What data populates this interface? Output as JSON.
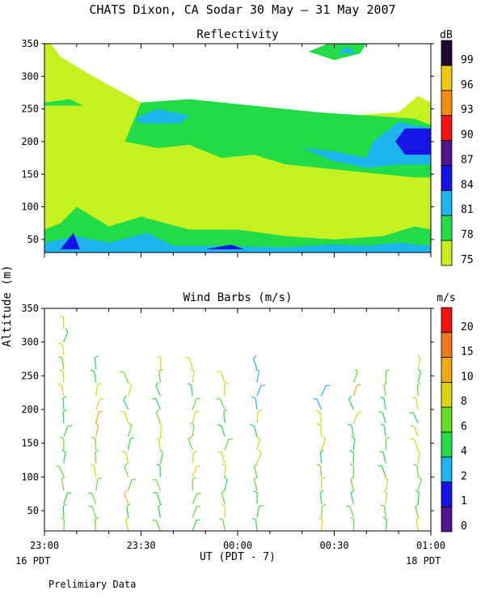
{
  "title": "CHATS Dixon, CA  Sodar  30 May – 31 May 2007",
  "ylabel": "Altitude (m)",
  "xlabel": "UT  (PDT - 7)",
  "x_ticks": [
    "23:00",
    "23:30",
    "00:00",
    "00:30",
    "01:00"
  ],
  "x_sublabels": {
    "left": "16 PDT",
    "right": "18 PDT"
  },
  "footer": "Prelimiary Data",
  "colors": {
    "r75": "#c6f020",
    "r78": "#22dc48",
    "r81": "#1eb4f0",
    "r84": "#1414e6",
    "r87": "#50148c",
    "r90": "#f01414",
    "r93": "#f08c14",
    "r96": "#f0c814",
    "r99": "#1e0a32",
    "w0": "#50148c",
    "w1": "#1414e6",
    "w2": "#1eb4f0",
    "w4": "#22dc48",
    "w6": "#64dc28",
    "w8": "#dcd214",
    "w10": "#f0aa14",
    "w15": "#f0781e",
    "w20": "#f01414"
  },
  "chart_data": [
    {
      "type": "heatmap",
      "title": "Reflectivity",
      "unit_label": "dB",
      "x_range": [
        "23:00",
        "01:00"
      ],
      "ylim": [
        30,
        350
      ],
      "yticks": [
        50,
        100,
        150,
        200,
        250,
        300,
        350
      ],
      "color_levels": [
        75,
        78,
        81,
        84,
        87,
        90,
        93,
        96,
        99
      ],
      "color_keys": [
        "r75",
        "r78",
        "r81",
        "r84",
        "r87",
        "r90",
        "r93",
        "r96",
        "r99"
      ],
      "regions": [
        {
          "level": 75,
          "points": [
            [
              "23:00",
              30
            ],
            [
              "01:00",
              30
            ],
            [
              "01:00",
              260
            ],
            [
              "00:56",
              270
            ],
            [
              "00:50",
              245
            ],
            [
              "00:35",
              240
            ],
            [
              "00:20",
              240
            ],
            [
              "00:05",
              225
            ],
            [
              "23:52",
              215
            ],
            [
              "23:40",
              225
            ],
            [
              "23:30",
              260
            ],
            [
              "23:15",
              300
            ],
            [
              "23:05",
              330
            ],
            [
              "23:02",
              350
            ],
            [
              "23:00",
              350
            ]
          ]
        },
        {
          "level": 78,
          "points": [
            [
              "23:00",
              30
            ],
            [
              "01:00",
              30
            ],
            [
              "01:00",
              65
            ],
            [
              "00:55",
              70
            ],
            [
              "00:45",
              55
            ],
            [
              "00:30",
              50
            ],
            [
              "00:15",
              55
            ],
            [
              "00:00",
              65
            ],
            [
              "23:45",
              65
            ],
            [
              "23:30",
              85
            ],
            [
              "23:20",
              70
            ],
            [
              "23:10",
              100
            ],
            [
              "23:05",
              75
            ],
            [
              "23:00",
              65
            ]
          ]
        },
        {
          "level": 78,
          "points": [
            [
              "23:25",
              200
            ],
            [
              "23:30",
              260
            ],
            [
              "23:45",
              265
            ],
            [
              "00:05",
              255
            ],
            [
              "00:25",
              245
            ],
            [
              "00:40",
              240
            ],
            [
              "00:55",
              235
            ],
            [
              "01:00",
              225
            ],
            [
              "01:00",
              145
            ],
            [
              "00:55",
              145
            ],
            [
              "00:45",
              150
            ],
            [
              "00:35",
              155
            ],
            [
              "00:25",
              160
            ],
            [
              "00:15",
              165
            ],
            [
              "00:05",
              180
            ],
            [
              "23:55",
              175
            ],
            [
              "23:45",
              195
            ],
            [
              "23:35",
              190
            ]
          ]
        },
        {
          "level": 78,
          "points": [
            [
              "23:00",
              260
            ],
            [
              "23:08",
              265
            ],
            [
              "23:12",
              255
            ],
            [
              "23:00",
              255
            ]
          ]
        },
        {
          "level": 78,
          "points": [
            [
              "00:22",
              338
            ],
            [
              "00:28",
              350
            ],
            [
              "00:40",
              350
            ],
            [
              "00:38",
              335
            ],
            [
              "00:30",
              325
            ]
          ]
        },
        {
          "level": 81,
          "points": [
            [
              "23:00",
              30
            ],
            [
              "01:00",
              30
            ],
            [
              "01:00",
              40
            ],
            [
              "00:50",
              45
            ],
            [
              "00:40",
              40
            ],
            [
              "00:30",
              42
            ],
            [
              "00:15",
              38
            ],
            [
              "23:55",
              40
            ],
            [
              "23:40",
              40
            ],
            [
              "23:32",
              60
            ],
            [
              "23:20",
              45
            ],
            [
              "23:10",
              55
            ],
            [
              "23:00",
              45
            ]
          ]
        },
        {
          "level": 81,
          "points": [
            [
              "23:28",
              235
            ],
            [
              "23:35",
              250
            ],
            [
              "23:45",
              240
            ],
            [
              "23:42",
              228
            ],
            [
              "23:30",
              228
            ]
          ]
        },
        {
          "level": 81,
          "points": [
            [
              "00:20",
              190
            ],
            [
              "00:30",
              185
            ],
            [
              "00:40",
              175
            ],
            [
              "00:42",
              200
            ],
            [
              "00:50",
              230
            ],
            [
              "01:00",
              220
            ],
            [
              "01:00",
              165
            ],
            [
              "00:50",
              165
            ],
            [
              "00:40",
              160
            ],
            [
              "00:30",
              170
            ]
          ]
        },
        {
          "level": 81,
          "points": [
            [
              "00:31",
              335
            ],
            [
              "00:34",
              345
            ],
            [
              "00:37",
              335
            ]
          ]
        },
        {
          "level": 84,
          "points": [
            [
              "23:05",
              35
            ],
            [
              "23:09",
              60
            ],
            [
              "23:11",
              35
            ]
          ]
        },
        {
          "level": 84,
          "points": [
            [
              "23:50",
              35
            ],
            [
              "23:58",
              42
            ],
            [
              "00:02",
              35
            ]
          ]
        },
        {
          "level": 84,
          "points": [
            [
              "00:49",
              200
            ],
            [
              "00:52",
              220
            ],
            [
              "01:00",
              220
            ],
            [
              "01:00",
              180
            ],
            [
              "00:52",
              180
            ]
          ]
        }
      ]
    },
    {
      "type": "scatter",
      "title": "Wind Barbs (m/s)",
      "unit_label": "m/s",
      "x_range": [
        "23:00",
        "01:00"
      ],
      "ylim": [
        20,
        350
      ],
      "yticks": [
        50,
        100,
        150,
        200,
        250,
        300,
        350
      ],
      "color_levels": [
        0,
        1,
        2,
        4,
        6,
        8,
        10,
        15,
        20
      ],
      "color_keys": [
        "w0",
        "w1",
        "w2",
        "w4",
        "w6",
        "w8",
        "w10",
        "w15",
        "w20"
      ],
      "profile_times": [
        "23:06",
        "23:16",
        "23:26",
        "23:36",
        "23:46",
        "23:56",
        "00:06",
        "00:26",
        "00:36",
        "00:46",
        "00:56"
      ],
      "profile_tops": [
        320,
        260,
        240,
        270,
        270,
        250,
        260,
        235,
        240,
        240,
        260
      ],
      "altitude_step": 20,
      "wind_speed_range_ms": [
        4,
        15
      ]
    }
  ]
}
